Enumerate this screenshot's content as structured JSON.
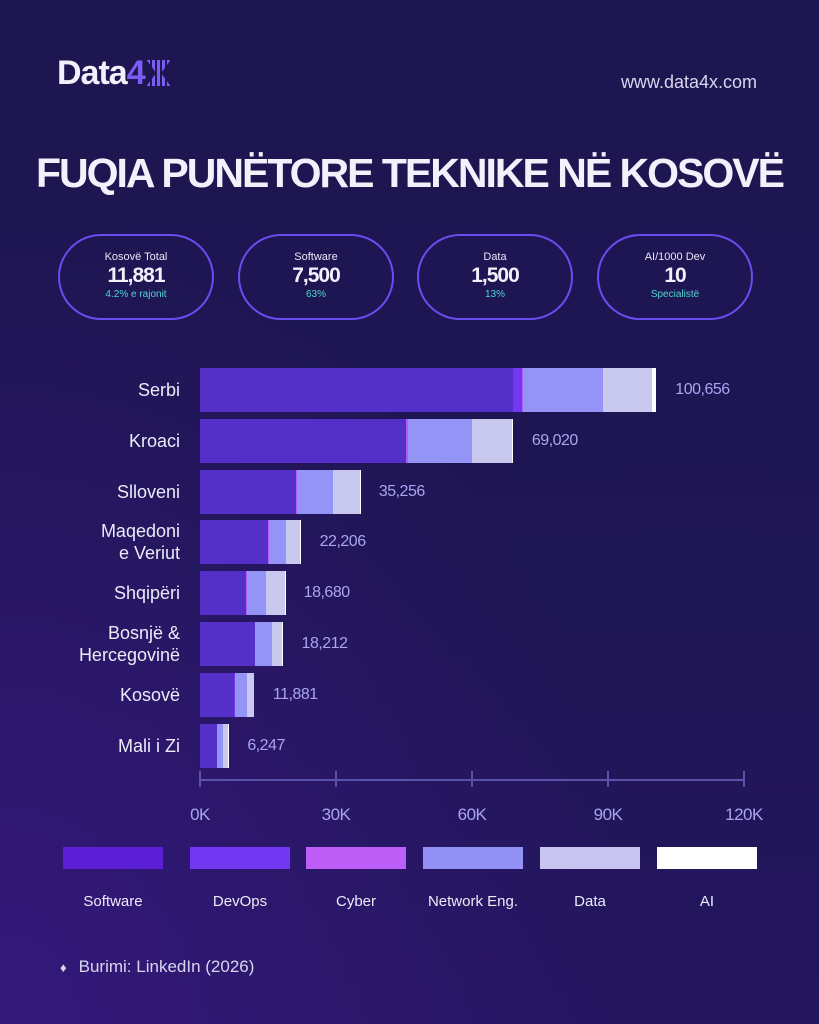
{
  "header": {
    "logo_text": "Data",
    "logo_accent": "4",
    "url": "www.data4x.com"
  },
  "title": "FUQIA PUNËTORE TEKNIKE NË KOSOVË",
  "cards": [
    {
      "label": "Kosovë Total",
      "value": "11,881",
      "sub": "4.2% e rajonit"
    },
    {
      "label": "Software",
      "value": "7,500",
      "sub": "63%"
    },
    {
      "label": "Data",
      "value": "1,500",
      "sub": "13%"
    },
    {
      "label": "AI/1000 Dev",
      "value": "10",
      "sub": "Specialistë"
    }
  ],
  "chart_data": {
    "type": "bar",
    "orientation": "horizontal",
    "stacked": true,
    "categories": [
      "Serbi",
      "Kroaci",
      "Slloveni",
      "Maqedoni e Veriut",
      "Shqipëri",
      "Bosnjë & Hercegovinë",
      "Kosovë",
      "Mali i Zi"
    ],
    "category_lines": [
      [
        "Serbi"
      ],
      [
        "Kroaci"
      ],
      [
        "Slloveni"
      ],
      [
        "Maqedoni",
        "e Veriut"
      ],
      [
        "Shqipëri"
      ],
      [
        "Bosnjë &",
        "Hercegovinë"
      ],
      [
        "Kosovë"
      ],
      [
        "Mali i Zi"
      ]
    ],
    "series": [
      {
        "name": "Software",
        "color": "#5530c8",
        "legend_color": "#5b1fd8",
        "values": [
          69000,
          45400,
          21200,
          15000,
          10100,
          12100,
          7500,
          3700
        ]
      },
      {
        "name": "DevOps",
        "color": "#7438f2",
        "legend_color": "#7238f2",
        "values": [
          2000,
          100,
          0,
          0,
          0,
          0,
          200,
          0
        ]
      },
      {
        "name": "Cyber",
        "color": "#b45cf5",
        "legend_color": "#bd5ef7",
        "values": [
          300,
          300,
          150,
          150,
          200,
          100,
          100,
          50
        ]
      },
      {
        "name": "Network Eng.",
        "color": "#9494f6",
        "legend_color": "#9292f6",
        "values": [
          17500,
          14200,
          8000,
          3900,
          4300,
          3600,
          2571,
          1350
        ]
      },
      {
        "name": "Data",
        "color": "#c9c8ee",
        "legend_color": "#c8c6f0",
        "values": [
          11000,
          8820,
          5856,
          3106,
          4050,
          2382,
          1500,
          1117
        ]
      },
      {
        "name": "AI",
        "color": "#ffffff",
        "legend_color": "#ffffff",
        "values": [
          856,
          200,
          50,
          50,
          30,
          30,
          10,
          30
        ]
      }
    ],
    "totals": [
      "100,656",
      "69,020",
      "35,256",
      "22,206",
      "18,680",
      "18,212",
      "11,881",
      "6,247"
    ],
    "xlim": [
      0,
      120000
    ],
    "xticks": [
      0,
      30000,
      60000,
      90000,
      120000
    ],
    "xtick_labels": [
      "0K",
      "30K",
      "60K",
      "90K",
      "120K"
    ],
    "legend_position": "bottom"
  },
  "source": {
    "bullet": "♦",
    "text": "Burimi: LinkedIn (2026)"
  }
}
